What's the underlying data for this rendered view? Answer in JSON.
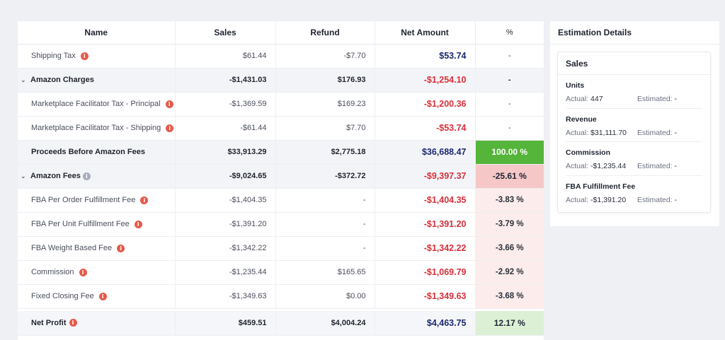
{
  "table": {
    "headers": {
      "name": "Name",
      "sales": "Sales",
      "refund": "Refund",
      "net": "Net Amount",
      "pct": "%"
    },
    "rows": [
      {
        "name": "Shipping Tax",
        "sales": "$61.44",
        "refund": "-$7.70",
        "net": "$53.74",
        "pct": "-"
      },
      {
        "name": "Amazon Charges",
        "sales": "-$1,431.03",
        "refund": "$176.93",
        "net": "-$1,254.10",
        "pct": "-"
      },
      {
        "name": "Marketplace Facilitator Tax - Principal",
        "sales": "-$1,369.59",
        "refund": "$169.23",
        "net": "-$1,200.36",
        "pct": "-"
      },
      {
        "name": "Marketplace Facilitator Tax - Shipping",
        "sales": "-$61.44",
        "refund": "$7.70",
        "net": "-$53.74",
        "pct": "-"
      },
      {
        "name": "Proceeds Before Amazon Fees",
        "sales": "$33,913.29",
        "refund": "$2,775.18",
        "net": "$36,688.47",
        "pct": "100.00 %"
      },
      {
        "name": "Amazon Fees",
        "sales": "-$9,024.65",
        "refund": "-$372.72",
        "net": "-$9,397.37",
        "pct": "-25.61 %"
      },
      {
        "name": "FBA Per Order Fulfillment Fee",
        "sales": "-$1,404.35",
        "refund": "-",
        "net": "-$1,404.35",
        "pct": "-3.83 %"
      },
      {
        "name": "FBA Per Unit Fulfillment Fee",
        "sales": "-$1,391.20",
        "refund": "-",
        "net": "-$1,391.20",
        "pct": "-3.79 %"
      },
      {
        "name": "FBA Weight Based Fee",
        "sales": "-$1,342.22",
        "refund": "-",
        "net": "-$1,342.22",
        "pct": "-3.66 %"
      },
      {
        "name": "Commission",
        "sales": "-$1,235.44",
        "refund": "$165.65",
        "net": "-$1,069.79",
        "pct": "-2.92 %"
      },
      {
        "name": "Fixed Closing Fee",
        "sales": "-$1,349.63",
        "refund": "$0.00",
        "net": "-$1,349.63",
        "pct": "-3.68 %"
      },
      {
        "name": "Net Profit",
        "sales": "$459.51",
        "refund": "$4,004.24",
        "net": "$4,463.75",
        "pct": "12.17 %"
      }
    ]
  },
  "icons": {
    "info": "info-icon",
    "collapse": "chevron-down-icon"
  },
  "colors": {
    "negative": "#d9303a",
    "positive": "#1c2a6e",
    "pct_full": "#55b43a",
    "pct_fees": "#f6c7c7",
    "pct_fee_items": "#fcecec",
    "pct_profit": "#dcf0d6"
  },
  "estimation": {
    "title": "Estimation Details",
    "section_title": "Sales",
    "actual_label": "Actual:",
    "estimated_label": "Estimated:",
    "metrics": [
      {
        "name": "Units",
        "actual": "447",
        "estimated": "-"
      },
      {
        "name": "Revenue",
        "actual": "$31,111.70",
        "estimated": "-"
      },
      {
        "name": "Commission",
        "actual": "-$1,235.44",
        "estimated": "-"
      },
      {
        "name": "FBA Fulfillment Fee",
        "actual": "-$1,391.20",
        "estimated": "-"
      }
    ]
  }
}
